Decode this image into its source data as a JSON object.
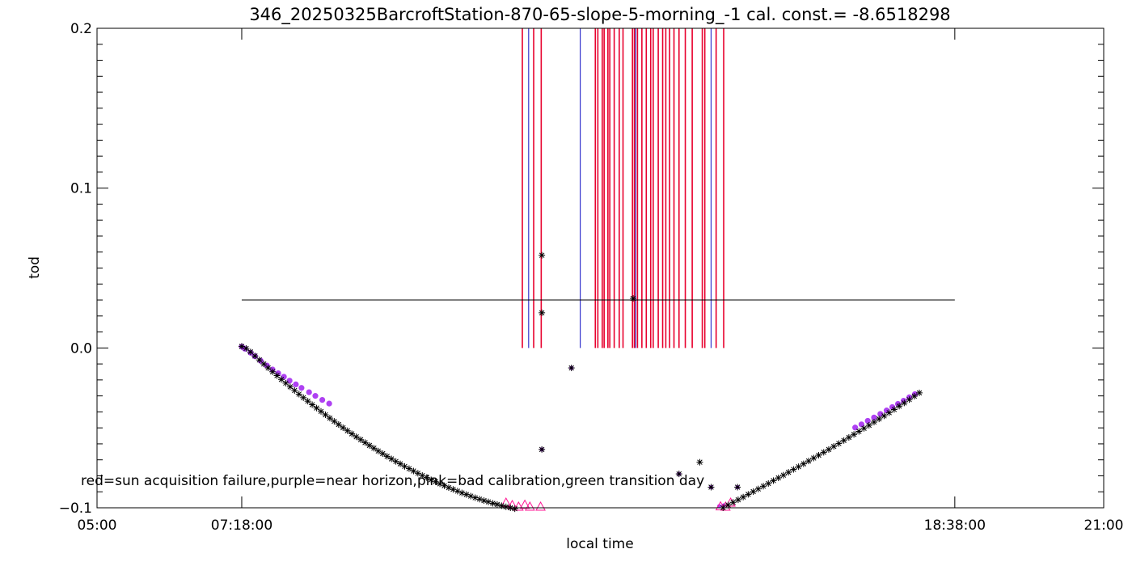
{
  "chart_data": {
    "type": "scatter",
    "title": "346_20250325BarcroftStation-870-65-slope-5-morning_-1 cal. const.= -8.6518298",
    "xlabel": "local time",
    "ylabel": "tod",
    "xlim_hours": [
      5.0,
      21.0
    ],
    "ylim": [
      -0.1,
      0.2
    ],
    "x_ticks": [
      {
        "hour": 5.0,
        "label": "05:00"
      },
      {
        "hour": 7.3,
        "label": "07:18:00"
      },
      {
        "hour": 18.6333,
        "label": "18:38:00"
      },
      {
        "hour": 21.0,
        "label": "21:00"
      }
    ],
    "y_ticks": [
      {
        "value": -0.1,
        "label": "−0.1"
      },
      {
        "value": 0.0,
        "label": "0.0"
      },
      {
        "value": 0.1,
        "label": "0.1"
      },
      {
        "value": 0.2,
        "label": "0.2"
      }
    ],
    "legend_text": "red=sun acquisition failure,purple=near horizon,pink=bad calibration,green transition day",
    "threshold_line": {
      "x_start": 7.3,
      "x_end": 18.6333,
      "value": 0.03
    },
    "colors": {
      "axes": "#000000",
      "stars": "#000000",
      "near_horizon": "#a020f0",
      "bad_calibration": "#ff1493",
      "sun_failure": "#e8002d",
      "blue_marker": "#3333cc"
    },
    "series": [
      {
        "kind": "stars",
        "x": [
          7.3,
          7.37,
          7.44,
          7.51,
          7.58,
          7.65,
          7.72,
          7.79,
          7.86,
          7.93,
          8.0,
          8.07,
          8.14,
          8.21,
          8.28,
          8.35,
          8.42,
          8.49,
          8.56,
          8.63,
          8.7,
          8.77,
          8.84,
          8.91,
          8.98,
          9.05,
          9.12,
          9.19,
          9.26,
          9.33,
          9.4,
          9.47,
          9.54,
          9.61,
          9.68,
          9.75,
          9.82,
          9.89,
          9.96,
          10.03,
          10.1,
          10.17,
          10.24,
          10.31,
          10.38,
          10.45,
          10.52,
          10.59,
          10.66,
          10.73,
          10.8,
          10.87,
          10.94,
          11.01,
          11.08,
          11.15,
          11.22,
          11.29,
          11.36,
          11.43,
          11.5,
          11.57,
          11.64
        ],
        "y": [
          0.001,
          -0.0003,
          -0.0025,
          -0.005,
          -0.0075,
          -0.01,
          -0.0125,
          -0.0149,
          -0.0173,
          -0.0197,
          -0.022,
          -0.0243,
          -0.0266,
          -0.0289,
          -0.0311,
          -0.0333,
          -0.0355,
          -0.0376,
          -0.0397,
          -0.0418,
          -0.0439,
          -0.0459,
          -0.0479,
          -0.0499,
          -0.0518,
          -0.0537,
          -0.0556,
          -0.0574,
          -0.0592,
          -0.061,
          -0.0627,
          -0.0645,
          -0.0661,
          -0.0678,
          -0.0694,
          -0.071,
          -0.0725,
          -0.0741,
          -0.0755,
          -0.077,
          -0.0784,
          -0.0798,
          -0.0811,
          -0.0825,
          -0.0837,
          -0.085,
          -0.0862,
          -0.0874,
          -0.0885,
          -0.0896,
          -0.0907,
          -0.0917,
          -0.0927,
          -0.0937,
          -0.0946,
          -0.0955,
          -0.0963,
          -0.0972,
          -0.0979,
          -0.0987,
          -0.0994,
          -0.1,
          -0.1006
        ]
      },
      {
        "kind": "stars",
        "x": [
          14.95,
          15.03,
          15.11,
          15.19,
          15.27,
          15.35,
          15.43,
          15.51,
          15.59,
          15.67,
          15.75,
          15.83,
          15.91,
          15.99,
          16.07,
          16.15,
          16.23,
          16.31,
          16.39,
          16.47,
          16.55,
          16.63,
          16.71,
          16.79,
          16.87,
          16.95,
          17.03,
          17.11,
          17.19,
          17.27,
          17.35,
          17.43,
          17.51,
          17.59,
          17.67,
          17.75,
          17.83,
          17.91,
          17.99,
          18.07
        ],
        "y": [
          -0.1,
          -0.0983,
          -0.0966,
          -0.095,
          -0.0933,
          -0.0916,
          -0.0899,
          -0.0882,
          -0.0865,
          -0.0848,
          -0.083,
          -0.0813,
          -0.0796,
          -0.0778,
          -0.076,
          -0.0743,
          -0.0725,
          -0.0707,
          -0.0689,
          -0.0671,
          -0.0653,
          -0.0635,
          -0.0616,
          -0.0598,
          -0.0579,
          -0.056,
          -0.0541,
          -0.0522,
          -0.0503,
          -0.0484,
          -0.0464,
          -0.0444,
          -0.0425,
          -0.0405,
          -0.0385,
          -0.0364,
          -0.0344,
          -0.0323,
          -0.0302,
          -0.0281
        ]
      },
      {
        "kind": "stars",
        "x": [
          12.07,
          12.07,
          12.07,
          12.54,
          13.52,
          14.25,
          14.58,
          14.76,
          15.18
        ],
        "y": [
          0.058,
          0.022,
          -0.0635,
          -0.0125,
          0.031,
          -0.0788,
          -0.0715,
          -0.0871,
          -0.0871
        ]
      },
      {
        "kind": "purple_dots",
        "x": [
          7.3,
          7.35,
          7.44,
          7.51,
          7.6,
          7.7,
          7.79,
          7.88,
          7.97,
          8.06,
          8.16,
          8.25,
          8.37,
          8.47,
          8.58,
          8.69,
          17.05,
          17.15,
          17.25,
          17.35,
          17.45,
          17.55,
          17.64,
          17.73,
          17.82,
          17.91,
          18.0
        ],
        "y": [
          0.0008,
          -0.0005,
          -0.003,
          -0.0052,
          -0.008,
          -0.011,
          -0.0135,
          -0.0158,
          -0.018,
          -0.0205,
          -0.0228,
          -0.025,
          -0.0277,
          -0.03,
          -0.0325,
          -0.0348,
          -0.0498,
          -0.0478,
          -0.0456,
          -0.0435,
          -0.0413,
          -0.0391,
          -0.037,
          -0.035,
          -0.033,
          -0.0309,
          -0.0289
        ]
      },
      {
        "kind": "purple_dots_small",
        "x": [
          12.07,
          12.54,
          14.25,
          14.76,
          15.18,
          14.89,
          14.96
        ],
        "y": [
          -0.0635,
          -0.0125,
          -0.0788,
          -0.0871,
          -0.0871,
          -0.099,
          -0.0985
        ]
      },
      {
        "kind": "triangles",
        "x": [
          11.5,
          11.6,
          11.7,
          11.8,
          11.88,
          12.05,
          14.91,
          14.99,
          15.07
        ],
        "y": [
          -0.0975,
          -0.099,
          -0.1,
          -0.0988,
          -0.1,
          -0.1,
          -0.0998,
          -0.1,
          -0.0975
        ]
      }
    ],
    "vertical_lines": {
      "from": 0.0,
      "to": 0.2,
      "red_x": [
        11.76,
        11.94,
        12.06,
        12.92,
        12.96,
        13.03,
        13.06,
        13.12,
        13.15,
        13.22,
        13.3,
        13.36,
        13.51,
        13.54,
        13.59,
        13.66,
        13.73,
        13.8,
        13.84,
        13.92,
        13.99,
        14.04,
        14.1,
        14.17,
        14.25,
        14.35,
        14.46,
        14.62,
        14.66,
        14.84,
        14.96
      ],
      "blue_x": [
        11.86,
        12.68,
        13.56,
        14.76
      ]
    }
  }
}
